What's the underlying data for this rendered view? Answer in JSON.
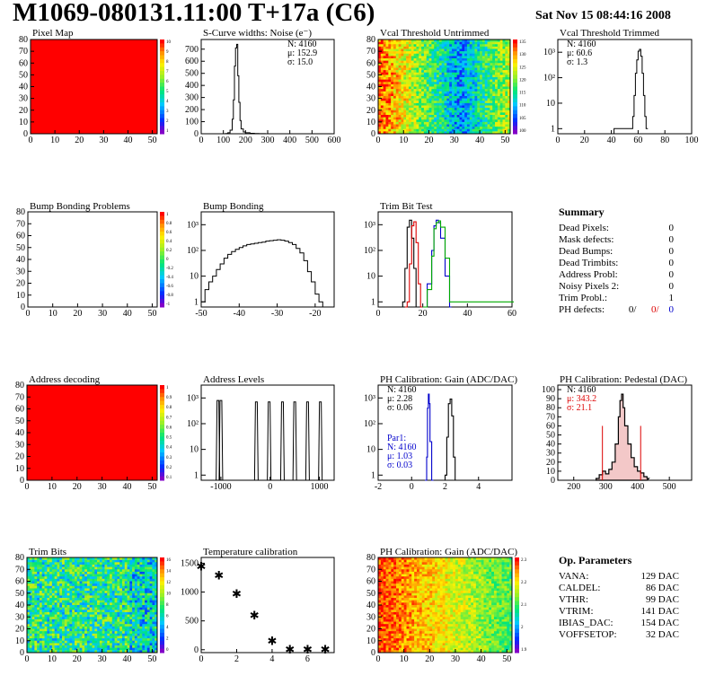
{
  "header": {
    "title": "M1069-080131.11:00 T+17a (C6)",
    "date": "Sat Nov 15 08:44:16 2008"
  },
  "summary": {
    "title": "Summary",
    "rows": [
      {
        "label": "Dead Pixels:",
        "value": "0"
      },
      {
        "label": "Mask defects:",
        "value": "0"
      },
      {
        "label": "Dead Bumps:",
        "value": "0"
      },
      {
        "label": "Dead Trimbits:",
        "value": "0"
      },
      {
        "label": "Address Probl:",
        "value": "0"
      },
      {
        "label": "Noisy Pixels 2:",
        "value": "0"
      },
      {
        "label": "Trim Probl.:",
        "value": "1"
      }
    ],
    "ph_label": "PH defects:",
    "ph_values": [
      "0/",
      "0/",
      "0"
    ]
  },
  "op_params": {
    "title": "Op. Parameters",
    "rows": [
      {
        "label": "VANA:",
        "value": "129 DAC"
      },
      {
        "label": "CALDEL:",
        "value": "86 DAC"
      },
      {
        "label": "VTHR:",
        "value": "99 DAC"
      },
      {
        "label": "VTRIM:",
        "value": "141 DAC"
      },
      {
        "label": "IBIAS_DAC:",
        "value": "154 DAC"
      },
      {
        "label": "VOFFSETOP:",
        "value": "32 DAC"
      }
    ]
  },
  "chart_data": [
    {
      "id": "pixel-map",
      "type": "heatmap",
      "title": "Pixel Map",
      "xticks": [
        0,
        10,
        20,
        30,
        40,
        50
      ],
      "yticks": [
        0,
        10,
        20,
        30,
        40,
        50,
        60,
        70,
        80
      ],
      "fill": "uniform-max",
      "colorbar": [
        "10",
        "9",
        "8",
        "7",
        "6",
        "5",
        "4",
        "3",
        "2",
        "1"
      ]
    },
    {
      "id": "scurve",
      "type": "bar",
      "title": "S-Curve widths: Noise (e⁻)",
      "xlim": [
        0,
        600
      ],
      "ylim": [
        0,
        780
      ],
      "xticks": [
        0,
        100,
        200,
        300,
        400,
        500,
        600
      ],
      "yticks": [
        0,
        100,
        200,
        300,
        400,
        500,
        600,
        700
      ],
      "stats": [
        "N: 4160",
        "μ: 152.9",
        "σ: 15.0"
      ],
      "x": [
        100,
        110,
        120,
        130,
        140,
        145,
        150,
        155,
        160,
        165,
        170,
        175,
        180,
        190,
        200,
        220,
        240,
        260,
        290
      ],
      "values": [
        0,
        2,
        8,
        30,
        120,
        280,
        560,
        710,
        740,
        480,
        260,
        110,
        40,
        15,
        8,
        4,
        2,
        1,
        0
      ]
    },
    {
      "id": "vcal-untrimmed",
      "type": "heatmap",
      "title": "Vcal Threshold Untrimmed",
      "xticks": [
        0,
        10,
        20,
        30,
        40,
        50
      ],
      "yticks": [
        0,
        10,
        20,
        30,
        40,
        50,
        60,
        70,
        80
      ],
      "colorbar": [
        "135",
        "130",
        "125",
        "120",
        "115",
        "110",
        "105",
        "100"
      ]
    },
    {
      "id": "vcal-trimmed",
      "type": "bar",
      "title": "Vcal Threshold Trimmed",
      "log": true,
      "xlim": [
        0,
        100
      ],
      "xticks": [
        0,
        20,
        40,
        60,
        80,
        100
      ],
      "yticks": [
        "1",
        "10",
        "10²",
        "10³"
      ],
      "stats": [
        "N: 4160",
        "μ: 60.6",
        "σ:  1.3"
      ],
      "x": [
        42,
        52,
        56,
        57,
        58,
        59,
        60,
        61,
        62,
        63,
        64,
        65,
        66
      ],
      "values": [
        1,
        1,
        3,
        20,
        150,
        500,
        1100,
        1300,
        700,
        150,
        20,
        3,
        1
      ]
    },
    {
      "id": "bump-problems",
      "type": "heatmap",
      "title": "Bump Bonding Problems",
      "xticks": [
        0,
        10,
        20,
        30,
        40,
        50
      ],
      "yticks": [
        0,
        10,
        20,
        30,
        40,
        50,
        60,
        70,
        80
      ],
      "fill": "empty",
      "colorbar": [
        "1",
        "0.8",
        "0.6",
        "0.4",
        "0.2",
        "0",
        "-0.2",
        "-0.4",
        "-0.6",
        "-0.8",
        "-1"
      ]
    },
    {
      "id": "bump-bonding",
      "type": "bar",
      "title": "Bump Bonding",
      "log": true,
      "xlim": [
        -50,
        -15
      ],
      "xticks": [
        -50,
        -40,
        -30,
        -20
      ],
      "yticks": [
        "1",
        "10",
        "10²",
        "10³"
      ],
      "x": [
        -50,
        -49,
        -48,
        -47,
        -46,
        -45,
        -44,
        -43,
        -42,
        -41,
        -40,
        -39,
        -38,
        -37,
        -36,
        -35,
        -34,
        -33,
        -32,
        -31,
        -30,
        -29,
        -28,
        -27,
        -26,
        -25,
        -24,
        -23,
        -22,
        -21,
        -20,
        -19,
        -18
      ],
      "values": [
        1,
        3,
        6,
        10,
        18,
        30,
        50,
        70,
        90,
        110,
        130,
        150,
        170,
        180,
        190,
        200,
        210,
        230,
        240,
        250,
        260,
        250,
        230,
        200,
        170,
        120,
        80,
        40,
        15,
        6,
        2,
        1,
        0
      ]
    },
    {
      "id": "trim-bit-test",
      "type": "line",
      "title": "Trim Bit Test",
      "log": true,
      "xlim": [
        0,
        60
      ],
      "xticks": [
        0,
        20,
        40,
        60
      ],
      "yticks": [
        "1",
        "10",
        "10²",
        "10³"
      ],
      "series": [
        {
          "color": "#000",
          "x": [
            10,
            11,
            12,
            13,
            14,
            15,
            16,
            17
          ],
          "values": [
            0,
            1,
            20,
            800,
            1500,
            300,
            20,
            0
          ]
        },
        {
          "color": "#d00",
          "x": [
            12,
            13,
            14,
            15,
            16,
            17,
            18,
            19
          ],
          "values": [
            0,
            1,
            30,
            900,
            1300,
            200,
            5,
            0
          ]
        },
        {
          "color": "#00c",
          "x": [
            20,
            22,
            24,
            25,
            26,
            27,
            28,
            30,
            32
          ],
          "values": [
            0,
            5,
            100,
            900,
            1500,
            1200,
            300,
            10,
            0
          ]
        },
        {
          "color": "#0a0",
          "x": [
            20,
            22,
            24,
            25,
            26,
            27,
            28,
            30,
            32,
            60
          ],
          "values": [
            0,
            3,
            60,
            700,
            1200,
            1400,
            800,
            50,
            1,
            1
          ]
        }
      ]
    },
    {
      "id": "address-decoding",
      "type": "heatmap",
      "title": "Address decoding",
      "xticks": [
        0,
        10,
        20,
        30,
        40,
        50
      ],
      "yticks": [
        0,
        10,
        20,
        30,
        40,
        50,
        60,
        70,
        80
      ],
      "fill": "uniform-max",
      "colorbar": [
        "1",
        "0.9",
        "0.8",
        "0.7",
        "0.6",
        "0.5",
        "0.4",
        "0.3",
        "0.2",
        "0.1"
      ]
    },
    {
      "id": "address-levels",
      "type": "bar",
      "title": "Address Levels",
      "log": true,
      "xlim": [
        -1400,
        1300
      ],
      "xticks": [
        -1000,
        0,
        1000
      ],
      "yticks": [
        "1",
        "10",
        "10²",
        "10³"
      ],
      "x": [
        -1060,
        -1000,
        -280,
        -20,
        250,
        500,
        760,
        1020
      ],
      "values": [
        800,
        800,
        700,
        700,
        700,
        700,
        700,
        700
      ]
    },
    {
      "id": "ph-gain",
      "type": "line",
      "title": "PH Calibration: Gain (ADC/DAC)",
      "log": true,
      "xlim": [
        -2,
        6
      ],
      "xticks": [
        -2,
        0,
        2,
        4
      ],
      "yticks": [
        "1",
        "10",
        "10²",
        "10³"
      ],
      "stats": [
        "N: 4160",
        "μ: 2.28",
        "σ: 0.06"
      ],
      "stats2": [
        "Par1:",
        "N: 4160",
        "μ: 1.03",
        "σ: 0.03"
      ],
      "series": [
        {
          "color": "#000",
          "x": [
            1.9,
            2.0,
            2.1,
            2.2,
            2.3,
            2.4,
            2.5,
            2.6
          ],
          "values": [
            0,
            1,
            30,
            600,
            900,
            200,
            5,
            0
          ]
        },
        {
          "color": "#00c",
          "x": [
            0.8,
            0.9,
            0.95,
            1.0,
            1.05,
            1.1,
            1.2
          ],
          "values": [
            0,
            5,
            400,
            1400,
            600,
            20,
            0
          ]
        }
      ]
    },
    {
      "id": "ph-pedestal",
      "type": "bar",
      "title": "PH Calibration: Pedestal (DAC)",
      "xlim": [
        150,
        570
      ],
      "xticks": [
        200,
        300,
        400,
        500
      ],
      "yticks": [
        0,
        10,
        20,
        30,
        40,
        50,
        60,
        70,
        80,
        90,
        100
      ],
      "stats": [
        "N: 4160",
        "μ: 343.2",
        "σ: 21.1"
      ],
      "x": [
        270,
        280,
        290,
        300,
        310,
        320,
        330,
        340,
        345,
        350,
        355,
        360,
        370,
        380,
        390,
        400,
        410,
        420,
        430
      ],
      "values": [
        2,
        6,
        10,
        7,
        12,
        20,
        40,
        70,
        88,
        95,
        80,
        60,
        40,
        25,
        15,
        10,
        8,
        4,
        2
      ]
    },
    {
      "id": "trim-bits",
      "type": "heatmap",
      "title": "Trim Bits",
      "xticks": [
        0,
        10,
        20,
        30,
        40,
        50
      ],
      "yticks": [
        0,
        10,
        20,
        30,
        40,
        50,
        60,
        70,
        80
      ],
      "colorbar": [
        "16",
        "14",
        "12",
        "10",
        "8",
        "6",
        "4",
        "2",
        "0"
      ]
    },
    {
      "id": "temperature",
      "type": "scatter",
      "title": "Temperature calibration",
      "xlim": [
        0,
        7.5
      ],
      "ylim": [
        -50,
        1600
      ],
      "xticks": [
        0,
        2,
        4,
        6
      ],
      "yticks": [
        0,
        500,
        1000,
        1500
      ],
      "x": [
        0,
        1,
        2,
        3,
        4,
        5,
        6,
        7
      ],
      "values": [
        1450,
        1300,
        980,
        600,
        160,
        10,
        10,
        10
      ]
    },
    {
      "id": "ph-gain-map",
      "type": "heatmap",
      "title": "PH Calibration: Gain (ADC/DAC)",
      "xticks": [
        0,
        10,
        20,
        30,
        40,
        50
      ],
      "yticks": [
        0,
        10,
        20,
        30,
        40,
        50,
        60,
        70,
        80
      ],
      "colorbar": [
        "2.3",
        "2.2",
        "2.1",
        "2",
        "1.9"
      ]
    }
  ]
}
